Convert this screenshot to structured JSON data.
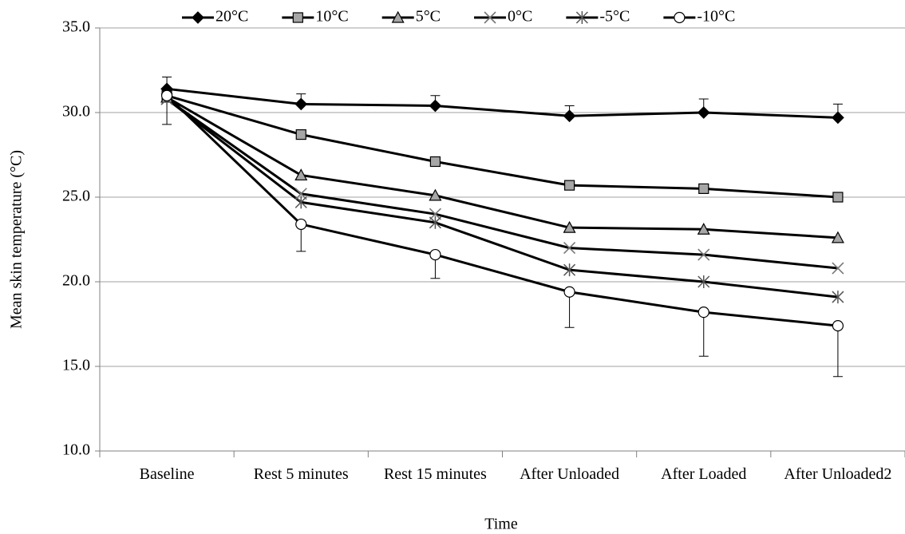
{
  "chart_data": {
    "type": "line",
    "x_label": "Time",
    "y_label": "Mean skin temperature (°C)",
    "categories": [
      "Baseline",
      "Rest 5 minutes",
      "Rest 15 minutes",
      "After Unloaded",
      "After Loaded",
      "After Unloaded2"
    ],
    "ylim": [
      10,
      35
    ],
    "yticks": [
      {
        "value": 10,
        "label": "10.0"
      },
      {
        "value": 15,
        "label": "15.0"
      },
      {
        "value": 20,
        "label": "20.0"
      },
      {
        "value": 25,
        "label": "25.0"
      },
      {
        "value": 30,
        "label": "30.0"
      },
      {
        "value": 35,
        "label": "35.0"
      }
    ],
    "grid": true,
    "legend": "top",
    "series": [
      {
        "name": "20°C",
        "color": "#000000",
        "marker": "diamond",
        "marker_fill": "#000000",
        "values": [
          31.4,
          30.5,
          30.4,
          29.8,
          30.0,
          29.7
        ],
        "errors": [
          0.7,
          0.6,
          0.6,
          0.6,
          0.8,
          0.8
        ],
        "error_direction": "up"
      },
      {
        "name": "10°C",
        "color": "#000000",
        "marker": "square",
        "marker_fill": "#a6a6a6",
        "values": [
          31.0,
          28.7,
          27.1,
          25.7,
          25.5,
          25.0
        ]
      },
      {
        "name": "5°C",
        "color": "#000000",
        "marker": "triangle",
        "marker_fill": "#a6a6a6",
        "values": [
          30.9,
          26.3,
          25.1,
          23.2,
          23.1,
          22.6
        ]
      },
      {
        "name": "0°C",
        "color": "#000000",
        "marker": "x",
        "marker_fill": "#a6a6a6",
        "values": [
          30.8,
          25.2,
          24.0,
          22.0,
          21.6,
          20.8
        ]
      },
      {
        "name": "-5°C",
        "color": "#000000",
        "marker": "asterisk",
        "marker_fill": "#000000",
        "values": [
          30.8,
          24.7,
          23.5,
          20.7,
          20.0,
          19.1
        ]
      },
      {
        "name": "-10°C",
        "color": "#000000",
        "marker": "circle",
        "marker_fill": "#ffffff",
        "values": [
          31.0,
          23.4,
          21.6,
          19.4,
          18.2,
          17.4
        ],
        "errors": [
          1.7,
          1.6,
          1.4,
          2.1,
          2.6,
          3.0
        ],
        "error_direction": "down"
      }
    ]
  }
}
